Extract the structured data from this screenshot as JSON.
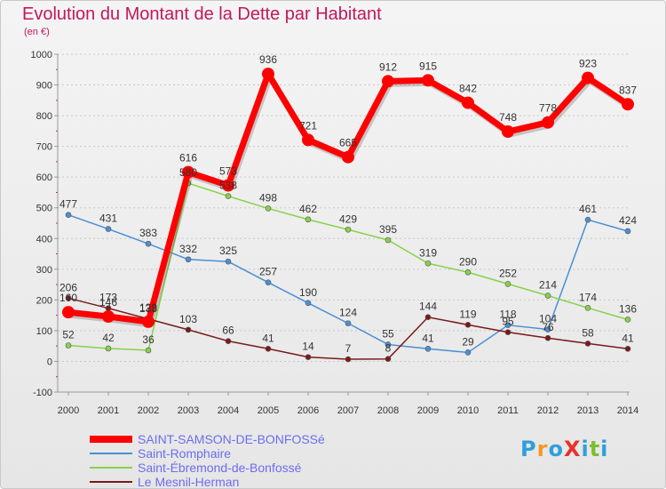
{
  "title": "Evolution du Montant de la Dette par Habitant",
  "subtitle": "(en €)",
  "logo": {
    "text": "ProXiti",
    "colors": [
      "#2f9fdc",
      "#f39a1e",
      "#2f9fdc",
      "#e8312a",
      "#2f9fdc",
      "#7bbf2a",
      "#2f9fdc"
    ]
  },
  "chart_data": {
    "type": "line",
    "title": "Evolution du Montant de la Dette par Habitant",
    "subtitle": "(en €)",
    "xlabel": "",
    "ylabel": "",
    "x": [
      2000,
      2001,
      2002,
      2003,
      2004,
      2005,
      2006,
      2007,
      2008,
      2009,
      2010,
      2011,
      2012,
      2013,
      2014
    ],
    "ylim": [
      -100,
      1000
    ],
    "yticks": [
      -100,
      0,
      100,
      200,
      300,
      400,
      500,
      600,
      700,
      800,
      900,
      1000
    ],
    "grid": "horizontal",
    "legend_position": "bottom-left",
    "series": [
      {
        "name": "SAINT-SAMSON-DE-BONFOSSé",
        "color": "#ff0000",
        "width": 7,
        "marker": 7,
        "values": [
          160,
          146,
          129,
          616,
          573,
          936,
          721,
          665,
          912,
          915,
          842,
          748,
          778,
          923,
          837
        ],
        "labels": [
          "160",
          "146",
          "129",
          "616",
          "573",
          "936",
          "721",
          "665",
          "912",
          "915",
          "842",
          "748",
          "778",
          "923",
          "837"
        ]
      },
      {
        "name": "Saint-Romphaire",
        "color": "#4a8fd4",
        "width": 1.5,
        "marker": 3,
        "values": [
          477,
          431,
          383,
          332,
          325,
          257,
          190,
          124,
          55,
          41,
          29,
          118,
          104,
          461,
          424
        ],
        "labels": [
          "477",
          "431",
          "383",
          "332",
          "325",
          "257",
          "190",
          "124",
          "55",
          "41",
          "29",
          "118",
          "104",
          "461",
          "424"
        ]
      },
      {
        "name": "Saint-Ébremond-de-Bonfossé",
        "color": "#86d24a",
        "width": 1.5,
        "marker": 3,
        "values": [
          52,
          42,
          36,
          580,
          538,
          498,
          462,
          429,
          395,
          319,
          290,
          252,
          214,
          174,
          136
        ],
        "labels": [
          "52",
          "42",
          "36",
          "580",
          "538",
          "498",
          "462",
          "429",
          "395",
          "319",
          "290",
          "252",
          "214",
          "174",
          "136"
        ]
      },
      {
        "name": "Le Mesnil-Herman",
        "color": "#7a1a1a",
        "width": 1.5,
        "marker": 3,
        "values": [
          206,
          173,
          138,
          103,
          66,
          41,
          14,
          7,
          8,
          144,
          119,
          95,
          76,
          58,
          41
        ],
        "labels": [
          "206",
          "173",
          "138",
          "103",
          "66",
          "41",
          "14",
          "7",
          "8",
          "144",
          "119",
          "95",
          "76",
          "58",
          "41"
        ]
      }
    ]
  }
}
